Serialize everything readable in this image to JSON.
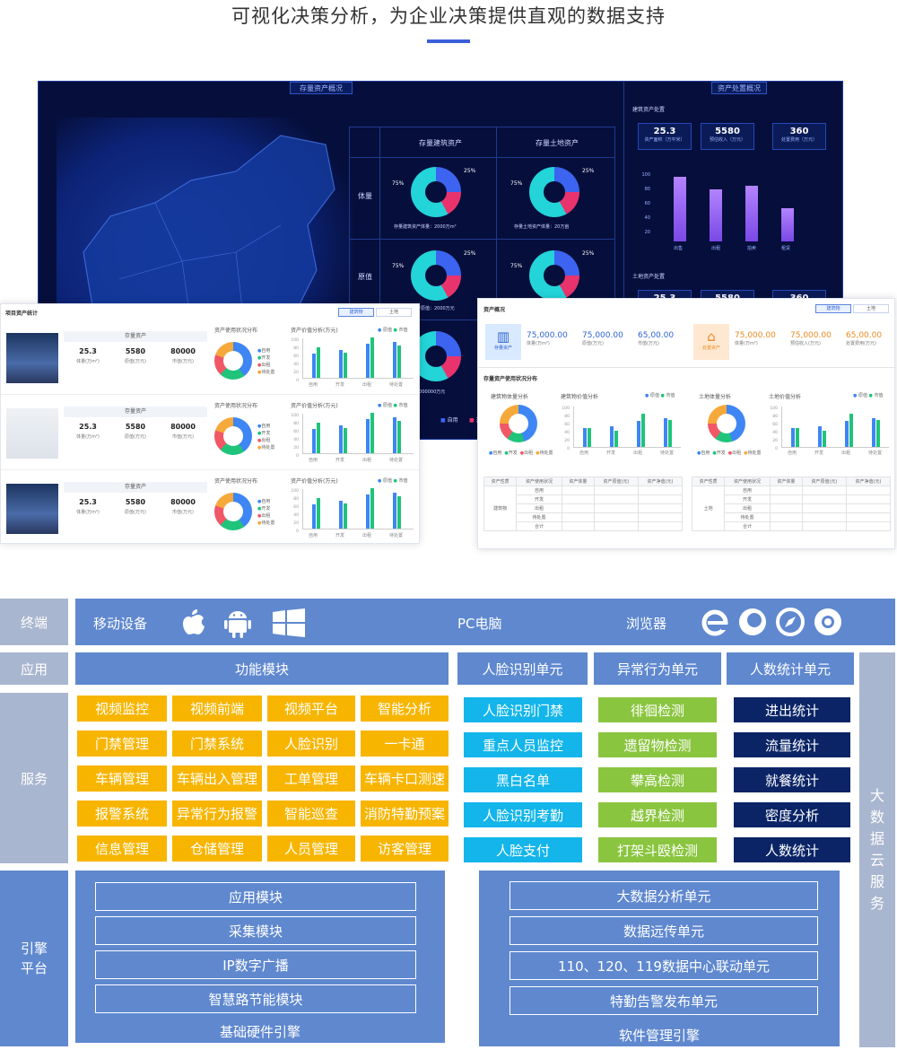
{
  "header": {
    "title": "可视化决策分析，为企业决策提供直观的数据支持"
  },
  "dashboard": {
    "left_title": "存量资产概况",
    "right_title": "资产处置概况",
    "col_building": "存量建筑资产",
    "col_land": "存量土地资产",
    "row_volume": "体量",
    "row_value": "原值",
    "pct_25": "25%",
    "pct_75": "75%",
    "caption_building_area": "存量建筑资产体量：2000万m²",
    "caption_land_area": "存量土地资产体量：20万亩",
    "caption_building_value": "存量建筑资产原值：2000万元",
    "caption_extra": "资产原值：2000000万元",
    "right_sub_building": "建筑资产处置",
    "right_sub_land": "土地资产处置",
    "kpi": [
      {
        "value": "25.3",
        "label": "资产面积（万平米）"
      },
      {
        "value": "5580",
        "label": "预估收入（万元）"
      },
      {
        "value": "360",
        "label": "处置费用（万元）"
      }
    ],
    "kpi2": [
      "25.3",
      "5580",
      "360"
    ],
    "chart_cats": [
      "出售",
      "出租",
      "拍卖",
      "租赁"
    ],
    "chart_axis": [
      "100",
      "80",
      "60",
      "40",
      "20",
      "0"
    ],
    "legend": [
      "自用",
      "开"
    ]
  },
  "project_card": {
    "title": "项目资产统计",
    "tab_building": "建筑物",
    "tab_land": "土地",
    "rows": [
      {
        "header": "存量资产",
        "kpis": [
          {
            "v": "25.3",
            "l": "体量(万m²)"
          },
          {
            "v": "5580",
            "l": "原值(万元)"
          },
          {
            "v": "80000",
            "l": "市值(万元)"
          }
        ]
      },
      {
        "header": "存量资产",
        "kpis": [
          {
            "v": "25.3",
            "l": "体量(万m²)"
          },
          {
            "v": "5580",
            "l": "原值(万元)"
          },
          {
            "v": "80000",
            "l": "市值(万元)"
          }
        ]
      },
      {
        "header": "存量资产",
        "kpis": [
          {
            "v": "25.3",
            "l": "体量(万m²)"
          },
          {
            "v": "5580",
            "l": "原值(万元)"
          },
          {
            "v": "80000",
            "l": "市值(万元)"
          }
        ]
      }
    ],
    "pie_title": "资产使用状况分布",
    "bar_title": "资产价值分析(万元)",
    "pie_legend": [
      "自用",
      "开发",
      "出租",
      "待处置"
    ],
    "bar_legend": [
      "原值",
      "市值"
    ],
    "bar_cats": [
      "自用",
      "开发",
      "出租",
      "待处置"
    ],
    "bar_axis": [
      "100",
      "80",
      "60",
      "40",
      "20",
      "0"
    ]
  },
  "overview_card": {
    "title": "资产概况",
    "tab_building": "建筑物",
    "tab_land": "土地",
    "stock_label": "存量资产",
    "dispose_label": "处置资产",
    "stock_kpis": [
      {
        "v": "75,000.00",
        "l": "体量(万m²)"
      },
      {
        "v": "75,000.00",
        "l": "原值(万元)"
      },
      {
        "v": "65,00.00",
        "l": "市值(万元)"
      }
    ],
    "dispose_kpis": [
      {
        "v": "75,000.00",
        "l": "体量(万m²)"
      },
      {
        "v": "75,000.00",
        "l": "预估收入(万元)"
      },
      {
        "v": "65,00.00",
        "l": "处置费用(万元)"
      }
    ],
    "usage_title": "存量资产使用状况分布",
    "bld_pie_title": "建筑物体量分析",
    "bld_bar_title": "建筑物价值分析",
    "land_pie_title": "土地体量分析",
    "land_bar_title": "土地价值分析",
    "legend_orig": "原值",
    "legend_market": "市值",
    "pie_legend": [
      "自用",
      "开发",
      "出租",
      "待处置"
    ],
    "bar_cats": [
      "自用",
      "开发",
      "出租",
      "待处置"
    ],
    "bar_axis": [
      "100",
      "80",
      "60",
      "40",
      "20",
      "0"
    ],
    "table_headers": [
      "资产性质",
      "资产使用状况",
      "资产体量",
      "资产原值(元)",
      "资产净值(元)"
    ],
    "table_rows": [
      "自用",
      "开发",
      "出租",
      "待处置",
      "合计"
    ],
    "bld_type": "建筑物",
    "land_type": "土地"
  },
  "arch": {
    "row_terminal": "终端",
    "row_app": "应用",
    "row_service": "服务",
    "row_engine": "引擎平台",
    "terminal": {
      "mobile": "移动设备",
      "pc": "PC电脑",
      "browser": "浏览器"
    },
    "app": {
      "func": "功能模块",
      "face": "人脸识别单元",
      "abnormal": "异常行为单元",
      "count": "人数统计单元"
    },
    "func_modules": [
      [
        "视频监控",
        "视频前端",
        "视频平台",
        "智能分析"
      ],
      [
        "门禁管理",
        "门禁系统",
        "人脸识别",
        "一卡通"
      ],
      [
        "车辆管理",
        "车辆出入管理",
        "工单管理",
        "车辆卡口测速"
      ],
      [
        "报警系统",
        "异常行为报警",
        "智能巡查",
        "消防特勤预案"
      ],
      [
        "信息管理",
        "仓储管理",
        "人员管理",
        "访客管理"
      ]
    ],
    "face_modules": [
      "人脸识别门禁",
      "重点人员监控",
      "黑白名单",
      "人脸识别考勤",
      "人脸支付"
    ],
    "abnormal_modules": [
      "徘徊检测",
      "遗留物检测",
      "攀高检测",
      "越界检测",
      "打架斗殴检测"
    ],
    "count_modules": [
      "进出统计",
      "流量统计",
      "就餐统计",
      "密度分析",
      "人数统计"
    ],
    "engine_left": [
      "应用模块",
      "采集模块",
      "IP数字广播",
      "智慧路节能模块"
    ],
    "engine_left_footer": "基础硬件引擎",
    "engine_right": [
      "大数据分析单元",
      "数据远传单元",
      "110、120、119数据中心联动单元",
      "特勤告警发布单元"
    ],
    "engine_right_footer": "软件管理引擎",
    "cloud": "大数据云服务",
    "colors": {
      "blue": "#5f88cf",
      "yellow": "#f8b500",
      "cyan": "#13b5ea",
      "green": "#8ac53f",
      "navy": "#0a2466",
      "grey": "#a9b6cf"
    }
  }
}
